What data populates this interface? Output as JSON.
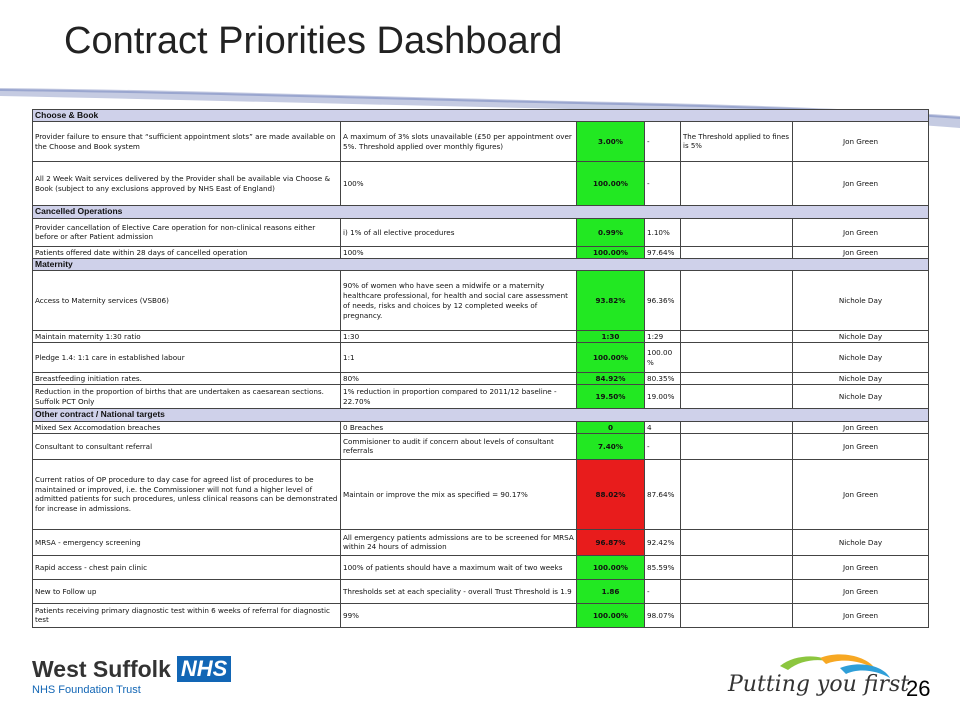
{
  "page": {
    "title": "Contract Priorities Dashboard",
    "page_number": "26"
  },
  "sections": [
    {
      "name": "Choose & Book",
      "rows": [
        {
          "indicator": "Provider failure to ensure that “sufficient appointment slots” are made available on the Choose and Book system",
          "target": "A maximum of 3% slots unavailable (£50 per appointment over 5%. Threshold applied over monthly figures)",
          "value": "3.00%",
          "status": "green",
          "previous": "-",
          "note": "The Threshold applied to fines is 5%",
          "owner": "Jon Green"
        },
        {
          "indicator": "All 2 Week Wait services delivered by the Provider shall be available via Choose & Book (subject to any exclusions approved by NHS East of England)",
          "target": "100%",
          "value": "100.00%",
          "status": "green",
          "previous": "-",
          "note": "",
          "owner": "Jon Green"
        }
      ]
    },
    {
      "name": "Cancelled Operations",
      "rows": [
        {
          "indicator": "Provider cancellation of Elective Care operation for non-clinical reasons either before or after Patient admission",
          "target": "i) 1% of all elective procedures",
          "value": "0.99%",
          "status": "green",
          "previous": "1.10%",
          "note": "",
          "owner": "Jon Green"
        },
        {
          "indicator": "Patients offered date within 28 days of cancelled operation",
          "target": "100%",
          "value": "100.00%",
          "status": "green",
          "previous": "97.64%",
          "note": "",
          "owner": "Jon Green"
        }
      ]
    },
    {
      "name": "Maternity",
      "rows": [
        {
          "indicator": "Access to Maternity services (VSB06)",
          "target": "90% of women who have seen a midwife or a maternity healthcare professional, for health and social care assessment of needs, risks and choices by 12 completed weeks of pregnancy.",
          "value": "93.82%",
          "status": "green",
          "previous": "96.36%",
          "note": "",
          "owner": "Nichole Day"
        },
        {
          "indicator": "Maintain maternity 1:30 ratio",
          "target": "1:30",
          "value": "1:30",
          "status": "green",
          "previous": "1:29",
          "note": "",
          "owner": "Nichole Day"
        },
        {
          "indicator": "Pledge 1.4: 1:1 care in established labour",
          "target": "1:1",
          "value": "100.00%",
          "status": "green",
          "previous": "100.00 %",
          "note": "",
          "owner": "Nichole Day"
        },
        {
          "indicator": "Breastfeeding initiation rates.",
          "target": "80%",
          "value": "84.92%",
          "status": "green",
          "previous": "80.35%",
          "note": "",
          "owner": "Nichole Day"
        },
        {
          "indicator": "Reduction in the proportion of births that are undertaken as caesarean sections. Suffolk PCT Only",
          "target": "1% reduction in proportion compared to 2011/12 baseline - 22.70%",
          "value": "19.50%",
          "status": "green",
          "previous": "19.00%",
          "note": "",
          "owner": "Nichole Day"
        }
      ]
    },
    {
      "name": "Other contract  / National targets",
      "rows": [
        {
          "indicator": "Mixed Sex Accomodation breaches",
          "target": "0 Breaches",
          "value": "0",
          "status": "green",
          "previous": "4",
          "note": "",
          "owner": "Jon Green"
        },
        {
          "indicator": "Consultant to consultant referral",
          "target": "Commisioner to audit if concern about levels of consultant referrals",
          "value": "7.40%",
          "status": "green",
          "previous": "-",
          "note": "",
          "owner": "Jon Green"
        },
        {
          "indicator": "Current ratios of OP procedure to day case for agreed list of procedures to be maintained or improved, i.e. the Commissioner will not fund a higher level of admitted patients for such procedures, unless clinical reasons can be demonstrated for increase in admissions.",
          "target": "Maintain or improve the mix as specified = 90.17%",
          "value": "88.02%",
          "status": "red",
          "previous": "87.64%",
          "note": "",
          "owner": "Jon Green"
        },
        {
          "indicator": "MRSA - emergency screening",
          "target": "All emergency patients admissions are to be screened for MRSA within 24 hours of admission",
          "value": "96.87%",
          "status": "red",
          "previous": "92.42%",
          "note": "",
          "owner": "Nichole Day"
        },
        {
          "indicator": "Rapid access - chest pain clinic",
          "target": "100% of patients should have a maximum wait of two weeks",
          "value": "100.00%",
          "status": "green",
          "previous": "85.59%",
          "note": "",
          "owner": "Jon Green"
        },
        {
          "indicator": "New to Follow up",
          "target": "Thresholds set at each speciality - overall Trust Threshold is 1.9",
          "value": "1.86",
          "status": "green",
          "previous": "-",
          "note": "",
          "owner": "Jon Green"
        },
        {
          "indicator": "Patients receiving primary diagnostic test within 6 weeks of referral for diagnostic test",
          "target": "99%",
          "value": "100.00%",
          "status": "green",
          "previous": "98.07%",
          "note": "",
          "owner": "Jon Green"
        }
      ]
    }
  ],
  "footer": {
    "org_name": "West Suffolk",
    "nhs_badge": "NHS",
    "org_sub": "NHS Foundation Trust",
    "slogan": "Putting you first"
  },
  "colors": {
    "green": "#22e822",
    "red": "#e81c1c",
    "section_bg": "#cfd1ea",
    "nhs_blue": "#1266b5"
  }
}
